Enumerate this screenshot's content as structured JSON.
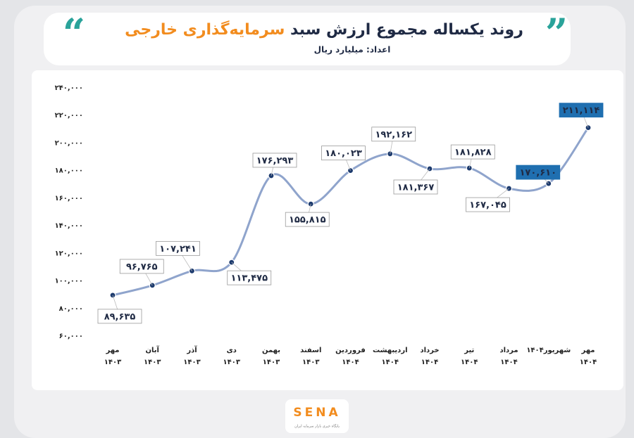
{
  "chart_data": {
    "type": "line",
    "title": "روند یکساله مجموع ارزش سبد ",
    "title_accent": "سرمایه‌گذاری خارجی",
    "subtitle": "اعداد: میلیارد ریال",
    "categories": [
      "مهر ۱۴۰۳",
      "آبان ۱۴۰۳",
      "آذر ۱۴۰۳",
      "دی ۱۴۰۳",
      "بهمن ۱۴۰۳",
      "اسفند ۱۴۰۳",
      "فروردین ۱۴۰۴",
      "اردیبهشت ۱۴۰۴",
      "خرداد ۱۴۰۴",
      "تیر ۱۴۰۴",
      "مرداد ۱۴۰۴",
      "شهریور۱۴۰۴",
      "مهر ۱۴۰۴"
    ],
    "values": [
      89635,
      96765,
      107241,
      113475,
      176293,
      155815,
      180023,
      192162,
      181367,
      181828,
      167045,
      170610,
      211114
    ],
    "value_labels": [
      "۸۹,۶۳۵",
      "۹۶,۷۶۵",
      "۱۰۷,۲۴۱",
      "۱۱۳,۴۷۵",
      "۱۷۶,۲۹۳",
      "۱۵۵,۸۱۵",
      "۱۸۰,۰۲۳",
      "۱۹۲,۱۶۲",
      "۱۸۱,۳۶۷",
      "۱۸۱,۸۲۸",
      "۱۶۷,۰۴۵",
      "۱۷۰,۶۱۰",
      "۲۱۱,۱۱۴"
    ],
    "color": "#8fa4cc",
    "marker_color": "#1d3b6e",
    "ylim": [
      60000,
      240000
    ],
    "yticks": [
      {
        "value": 60000,
        "label": "۶۰,۰۰۰"
      },
      {
        "value": 80000,
        "label": "۸۰,۰۰۰"
      },
      {
        "value": 100000,
        "label": "۱۰۰,۰۰۰"
      },
      {
        "value": 120000,
        "label": "۱۲۰,۰۰۰"
      },
      {
        "value": 140000,
        "label": "۱۴۰,۰۰۰"
      },
      {
        "value": 160000,
        "label": "۱۶۰,۰۰۰"
      },
      {
        "value": 180000,
        "label": "۱۸۰,۰۰۰"
      },
      {
        "value": 200000,
        "label": "۲۰۰,۰۰۰"
      },
      {
        "value": 220000,
        "label": "۲۲۰,۰۰۰"
      },
      {
        "value": 240000,
        "label": "۲۴۰,۰۰۰"
      }
    ],
    "grid": false
  },
  "logo": {
    "name": "SENA",
    "tagline": "پایگاه خبری بازار سرمایه ایران"
  }
}
